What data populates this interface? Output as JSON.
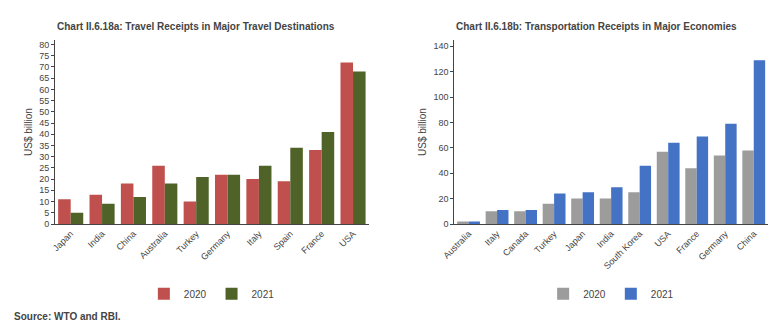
{
  "chart_data": [
    {
      "type": "bar",
      "title": "Chart II.6.18a: Travel Receipts in Major Travel Destinations",
      "categories": [
        "Japan",
        "India",
        "China",
        "Australia",
        "Turkey",
        "Germany",
        "Italy",
        "Spain",
        "France",
        "USA"
      ],
      "series": [
        {
          "name": "2020",
          "color": "#C0504D",
          "values": [
            11,
            13,
            18,
            26,
            10,
            22,
            20,
            19,
            33,
            72
          ]
        },
        {
          "name": "2021",
          "color": "#4F6228",
          "values": [
            5,
            9,
            12,
            18,
            21,
            22,
            26,
            34,
            41,
            68
          ]
        }
      ],
      "ylabel": "US$ billion",
      "ylim": [
        0,
        82
      ],
      "yticks": [
        0,
        5,
        10,
        15,
        20,
        25,
        30,
        35,
        40,
        45,
        50,
        55,
        60,
        65,
        70,
        75,
        80
      ],
      "grid": false
    },
    {
      "type": "bar",
      "title": "Chart II.6.18b: Transportation Receipts in Major Economies",
      "categories": [
        "Australia",
        "Italy",
        "Canada",
        "Turkey",
        "Japan",
        "India",
        "South Korea",
        "USA",
        "France",
        "Germany",
        "China"
      ],
      "series": [
        {
          "name": "2020",
          "color": "#9C9C9C",
          "values": [
            2,
            10,
            10,
            16,
            20,
            20,
            25,
            57,
            44,
            54,
            58
          ]
        },
        {
          "name": "2021",
          "color": "#4472C4",
          "values": [
            2,
            11,
            11,
            24,
            25,
            29,
            46,
            64,
            69,
            79,
            129
          ]
        }
      ],
      "ylabel": "US$ billion",
      "ylim": [
        0,
        145
      ],
      "yticks": [
        0,
        20,
        40,
        60,
        80,
        100,
        120,
        140
      ],
      "grid": false
    }
  ],
  "source": "Source: WTO and RBI."
}
